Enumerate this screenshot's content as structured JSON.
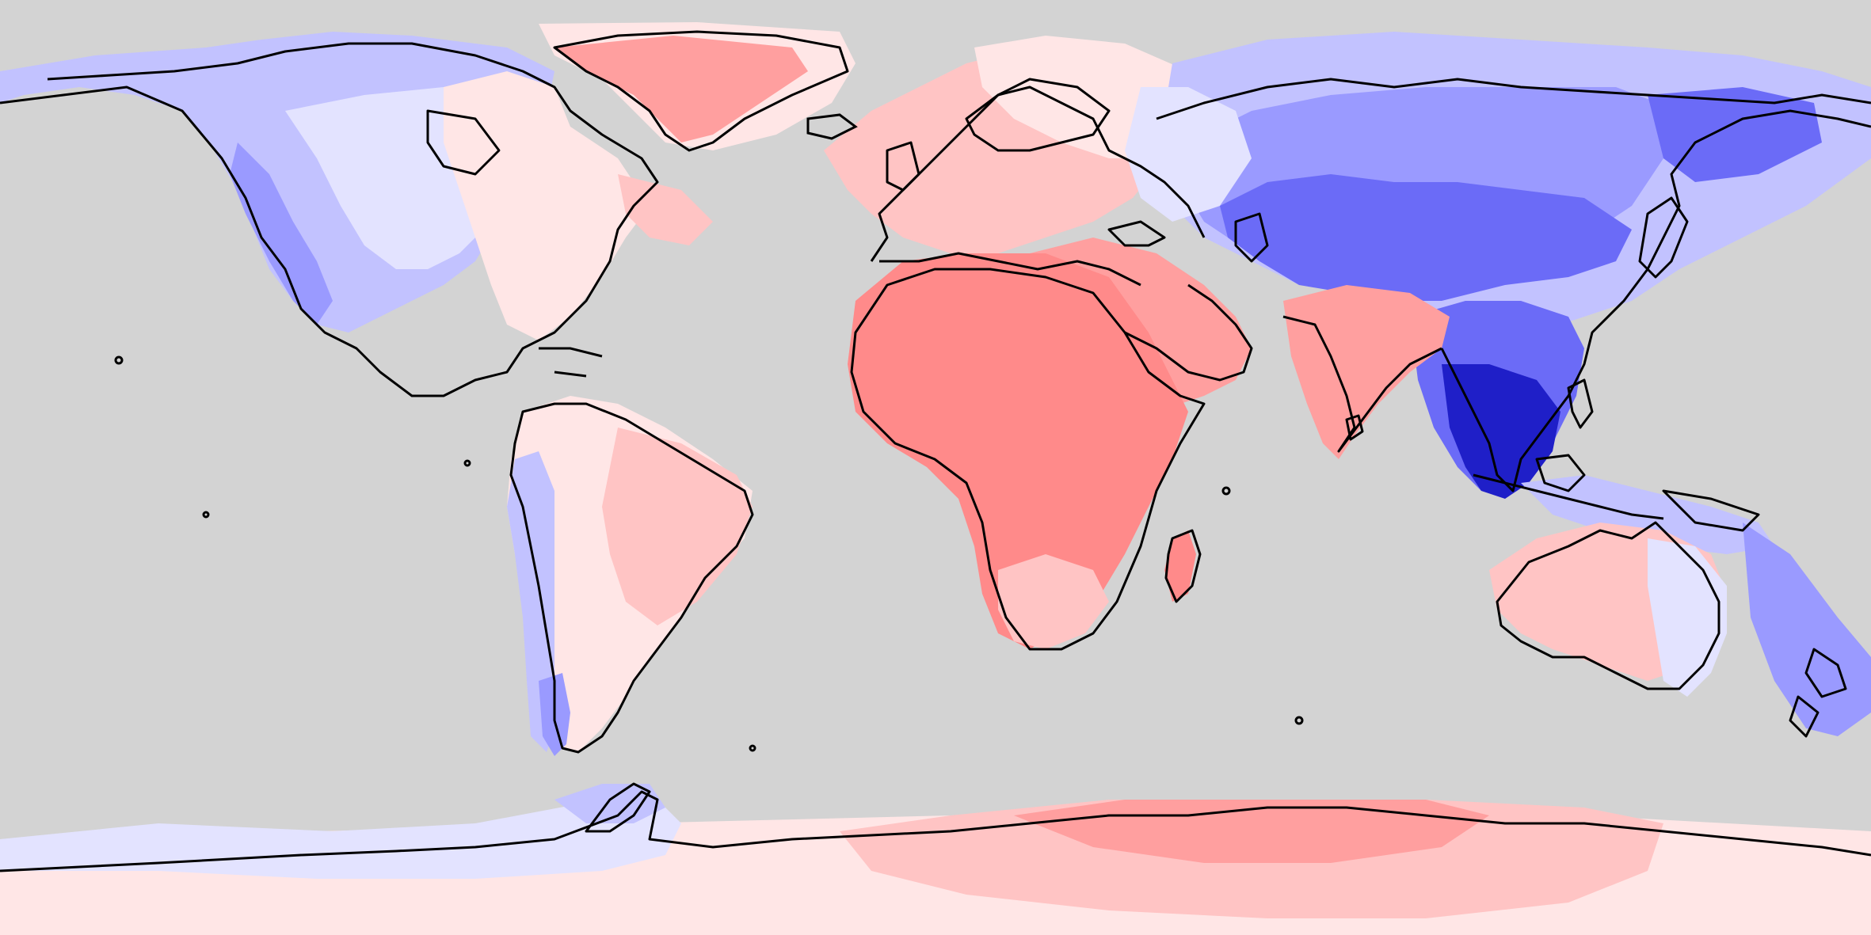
{
  "map": {
    "projection": "equirectangular",
    "background_color": "#d3d3d3",
    "coastline_color": "#000000",
    "colors": {
      "red_1": "#ffe6e6",
      "red_2": "#ffc4c4",
      "red_3": "#ff9f9f",
      "red_4": "#ff8a8a",
      "blue_1": "#e3e3ff",
      "blue_2": "#c2c2ff",
      "blue_3": "#9a9aff",
      "blue_4": "#6b6bf7",
      "blue_5": "#3d3de6",
      "blue_6": "#1f1fc8"
    },
    "regions": [
      {
        "name": "north-america",
        "color": "blue_2"
      },
      {
        "name": "eastern-north-america",
        "color": "red_1"
      },
      {
        "name": "greenland",
        "color": "red_3"
      },
      {
        "name": "europe",
        "color": "red_2"
      },
      {
        "name": "siberia",
        "color": "blue_3"
      },
      {
        "name": "central-asia",
        "color": "blue_4"
      },
      {
        "name": "southeast-asia",
        "color": "blue_6"
      },
      {
        "name": "africa",
        "color": "red_4"
      },
      {
        "name": "arabia-india",
        "color": "red_3"
      },
      {
        "name": "south-america",
        "color": "red_2"
      },
      {
        "name": "australia",
        "color": "red_2"
      },
      {
        "name": "new-zealand",
        "color": "blue_3"
      },
      {
        "name": "antarctica-west",
        "color": "blue_1"
      },
      {
        "name": "antarctica-east",
        "color": "red_3"
      }
    ]
  }
}
